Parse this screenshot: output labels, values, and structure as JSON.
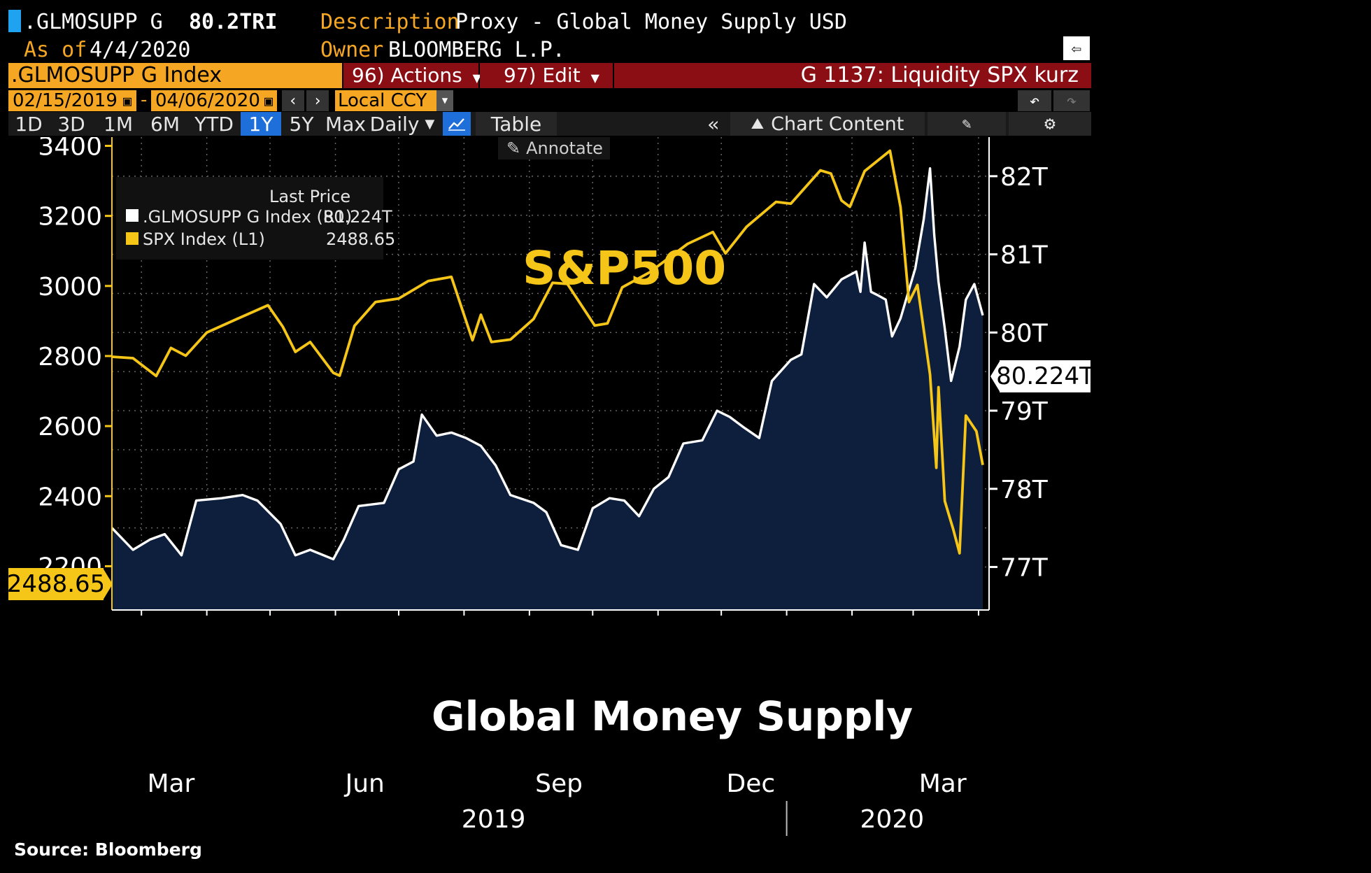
{
  "header": {
    "ticker": ".GLMOSUPP G",
    "price": "80.2TRI",
    "asof_label": "As of",
    "asof_date": "4/4/2020",
    "desc_label": "Description",
    "desc_value": "Proxy - Global Money Supply USD",
    "owner_label": "Owner",
    "owner_value": "BLOOMBERG L.P."
  },
  "toolbar": {
    "security": ".GLMOSUPP G Index",
    "actions_label": "96) Actions",
    "edit_label": "97) Edit",
    "chart_name": "G 1137: Liquidity SPX kurz",
    "date_from": "02/15/2019",
    "date_sep": "-",
    "date_to": "04/06/2020",
    "currency": "Local CCY",
    "timeframes": [
      "1D",
      "3D",
      "1M",
      "6M",
      "YTD",
      "1Y",
      "5Y",
      "Max"
    ],
    "active_timeframe": "1Y",
    "period": "Daily",
    "table_label": "Table",
    "chart_content_label": "Chart Content",
    "annotate_label": "Annotate"
  },
  "legend": {
    "title": "Last Price",
    "items": [
      {
        "name": ".GLMOSUPP G Index  (R1)",
        "value": "80.224T",
        "color": "#ffffff"
      },
      {
        "name": "SPX Index  (L1)",
        "value": "2488.65",
        "color": "#f5c518"
      }
    ]
  },
  "overlay": {
    "sp500_label": "S&P500",
    "gms_label": "Global Money Supply"
  },
  "source": "Source: Bloomberg",
  "colors": {
    "spx": "#f5c518",
    "gms_line": "#ffffff",
    "gms_fill": "#0e1f3d",
    "orange": "#f5a623",
    "red_bar": "#8b0e14",
    "active_tab": "#1e6fd9"
  },
  "chart_data": {
    "type": "line",
    "x_start": "2019-02-15",
    "x_end": "2020-04-06",
    "left_axis": {
      "label": "SPX Index",
      "ticks": [
        2200,
        2400,
        2600,
        2800,
        3000,
        3200,
        3400
      ],
      "range": [
        2075,
        3425
      ]
    },
    "right_axis": {
      "label": ".GLMOSUPP G Index",
      "ticks": [
        "77T",
        "78T",
        "79T",
        "80T",
        "81T",
        "82T"
      ],
      "tick_values": [
        77,
        78,
        79,
        80,
        81,
        82
      ],
      "range": [
        76.45,
        82.5
      ]
    },
    "x_month_labels": [
      {
        "label": "Mar",
        "date": "2019-03-15"
      },
      {
        "label": "Jun",
        "date": "2019-06-15"
      },
      {
        "label": "Sep",
        "date": "2019-09-15"
      },
      {
        "label": "Dec",
        "date": "2019-12-15"
      },
      {
        "label": "Mar",
        "date": "2020-03-15"
      }
    ],
    "x_year_labels": [
      {
        "label": "2019",
        "date": "2019-08-15"
      },
      {
        "label": "2020",
        "date": "2020-02-20"
      }
    ],
    "last_values": {
      "spx": "2488.65",
      "gms": "80.224T"
    },
    "series": [
      {
        "name": "SPX Index",
        "axis": "left",
        "points": [
          [
            "2019-02-15",
            2798
          ],
          [
            "2019-02-25",
            2794
          ],
          [
            "2019-03-08",
            2743
          ],
          [
            "2019-03-15",
            2823
          ],
          [
            "2019-03-22",
            2801
          ],
          [
            "2019-04-01",
            2867
          ],
          [
            "2019-04-15",
            2905
          ],
          [
            "2019-04-30",
            2945
          ],
          [
            "2019-05-07",
            2884
          ],
          [
            "2019-05-13",
            2812
          ],
          [
            "2019-05-20",
            2840
          ],
          [
            "2019-05-31",
            2752
          ],
          [
            "2019-06-03",
            2744
          ],
          [
            "2019-06-10",
            2886
          ],
          [
            "2019-06-20",
            2954
          ],
          [
            "2019-07-01",
            2964
          ],
          [
            "2019-07-15",
            3014
          ],
          [
            "2019-07-26",
            3026
          ],
          [
            "2019-08-05",
            2845
          ],
          [
            "2019-08-09",
            2918
          ],
          [
            "2019-08-14",
            2840
          ],
          [
            "2019-08-23",
            2847
          ],
          [
            "2019-09-03",
            2906
          ],
          [
            "2019-09-12",
            3009
          ],
          [
            "2019-09-19",
            3006
          ],
          [
            "2019-10-02",
            2887
          ],
          [
            "2019-10-08",
            2893
          ],
          [
            "2019-10-15",
            2996
          ],
          [
            "2019-10-28",
            3039
          ],
          [
            "2019-11-15",
            3120
          ],
          [
            "2019-11-27",
            3154
          ],
          [
            "2019-12-03",
            3093
          ],
          [
            "2019-12-13",
            3169
          ],
          [
            "2019-12-27",
            3240
          ],
          [
            "2020-01-03",
            3235
          ],
          [
            "2020-01-17",
            3330
          ],
          [
            "2020-01-22",
            3321
          ],
          [
            "2020-01-27",
            3244
          ],
          [
            "2020-01-31",
            3226
          ],
          [
            "2020-02-07",
            3328
          ],
          [
            "2020-02-19",
            3386
          ],
          [
            "2020-02-24",
            3225
          ],
          [
            "2020-02-28",
            2954
          ],
          [
            "2020-03-03",
            3003
          ],
          [
            "2020-03-09",
            2747
          ],
          [
            "2020-03-12",
            2481
          ],
          [
            "2020-03-13",
            2711
          ],
          [
            "2020-03-16",
            2386
          ],
          [
            "2020-03-20",
            2305
          ],
          [
            "2020-03-23",
            2237
          ],
          [
            "2020-03-26",
            2630
          ],
          [
            "2020-03-31",
            2585
          ],
          [
            "2020-04-03",
            2489
          ]
        ]
      },
      {
        "name": ".GLMOSUPP G Index",
        "axis": "right",
        "points": [
          [
            "2019-02-15",
            77.5
          ],
          [
            "2019-02-25",
            77.22
          ],
          [
            "2019-03-05",
            77.35
          ],
          [
            "2019-03-12",
            77.42
          ],
          [
            "2019-03-20",
            77.15
          ],
          [
            "2019-03-27",
            77.85
          ],
          [
            "2019-04-08",
            77.88
          ],
          [
            "2019-04-18",
            77.92
          ],
          [
            "2019-04-25",
            77.85
          ],
          [
            "2019-05-06",
            77.55
          ],
          [
            "2019-05-13",
            77.15
          ],
          [
            "2019-05-20",
            77.22
          ],
          [
            "2019-05-31",
            77.1
          ],
          [
            "2019-06-05",
            77.35
          ],
          [
            "2019-06-12",
            77.78
          ],
          [
            "2019-06-24",
            77.82
          ],
          [
            "2019-07-01",
            78.25
          ],
          [
            "2019-07-08",
            78.35
          ],
          [
            "2019-07-12",
            78.95
          ],
          [
            "2019-07-19",
            78.68
          ],
          [
            "2019-07-26",
            78.72
          ],
          [
            "2019-08-02",
            78.65
          ],
          [
            "2019-08-09",
            78.55
          ],
          [
            "2019-08-16",
            78.3
          ],
          [
            "2019-08-23",
            77.92
          ],
          [
            "2019-09-03",
            77.82
          ],
          [
            "2019-09-09",
            77.7
          ],
          [
            "2019-09-16",
            77.28
          ],
          [
            "2019-09-24",
            77.22
          ],
          [
            "2019-10-01",
            77.75
          ],
          [
            "2019-10-09",
            77.88
          ],
          [
            "2019-10-16",
            77.85
          ],
          [
            "2019-10-23",
            77.65
          ],
          [
            "2019-10-30",
            78.0
          ],
          [
            "2019-11-06",
            78.15
          ],
          [
            "2019-11-13",
            78.58
          ],
          [
            "2019-11-22",
            78.62
          ],
          [
            "2019-11-29",
            79.0
          ],
          [
            "2019-12-05",
            78.92
          ],
          [
            "2019-12-12",
            78.78
          ],
          [
            "2019-12-19",
            78.65
          ],
          [
            "2019-12-25",
            79.38
          ],
          [
            "2020-01-03",
            79.65
          ],
          [
            "2020-01-08",
            79.72
          ],
          [
            "2020-01-14",
            80.62
          ],
          [
            "2020-01-20",
            80.45
          ],
          [
            "2020-01-27",
            80.68
          ],
          [
            "2020-02-03",
            80.78
          ],
          [
            "2020-02-05",
            80.52
          ],
          [
            "2020-02-07",
            81.15
          ],
          [
            "2020-02-10",
            80.52
          ],
          [
            "2020-02-13",
            80.48
          ],
          [
            "2020-02-17",
            80.42
          ],
          [
            "2020-02-20",
            79.95
          ],
          [
            "2020-02-24",
            80.18
          ],
          [
            "2020-03-02",
            80.82
          ],
          [
            "2020-03-06",
            81.45
          ],
          [
            "2020-03-09",
            82.1
          ],
          [
            "2020-03-11",
            81.25
          ],
          [
            "2020-03-13",
            80.65
          ],
          [
            "2020-03-16",
            80.05
          ],
          [
            "2020-03-19",
            79.38
          ],
          [
            "2020-03-23",
            79.82
          ],
          [
            "2020-03-26",
            80.42
          ],
          [
            "2020-03-30",
            80.62
          ],
          [
            "2020-04-03",
            80.22
          ]
        ]
      }
    ]
  }
}
